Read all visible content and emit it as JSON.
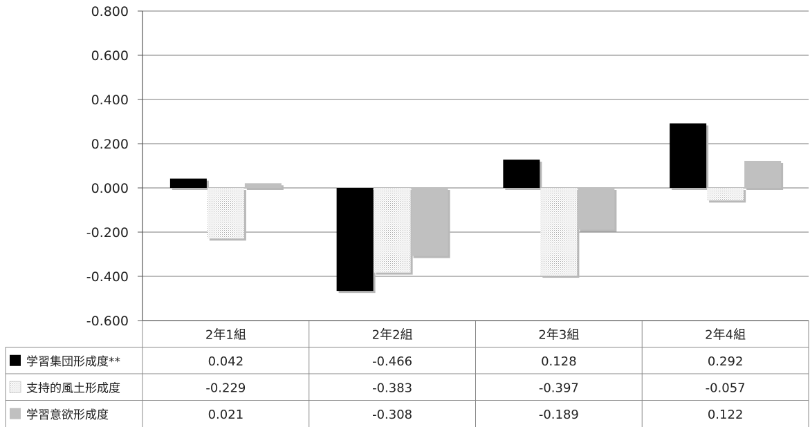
{
  "chart_data": {
    "type": "bar",
    "title": "",
    "xlabel": "",
    "ylabel": "",
    "ylim": [
      -0.6,
      0.8
    ],
    "yticks": [
      "0.800",
      "0.600",
      "0.400",
      "0.200",
      "0.000",
      "-0.200",
      "-0.400",
      "-0.600"
    ],
    "ytick_values": [
      0.8,
      0.6,
      0.4,
      0.2,
      0.0,
      -0.2,
      -0.4,
      -0.6
    ],
    "grid": true,
    "legend_placement": "data-table-left",
    "categories": [
      "2年1組",
      "2年2組",
      "2年3組",
      "2年4組"
    ],
    "series": [
      {
        "name": "学習集団形成度**",
        "values": [
          0.042,
          -0.466,
          0.128,
          0.292
        ],
        "value_labels": [
          "0.042",
          "-0.466",
          "0.128",
          "0.292"
        ],
        "color": "#000000",
        "pattern": "solid"
      },
      {
        "name": "支持的風土形成度",
        "values": [
          -0.229,
          -0.383,
          -0.397,
          -0.057
        ],
        "value_labels": [
          "-0.229",
          "-0.383",
          "-0.397",
          "-0.057"
        ],
        "color": "#e6e6e6",
        "pattern": "dotted"
      },
      {
        "name": "学習意欲形成度",
        "values": [
          0.021,
          -0.308,
          -0.189,
          0.122
        ],
        "value_labels": [
          "0.021",
          "-0.308",
          "-0.189",
          "0.122"
        ],
        "color": "#c0c0c0",
        "pattern": "solid"
      }
    ]
  }
}
